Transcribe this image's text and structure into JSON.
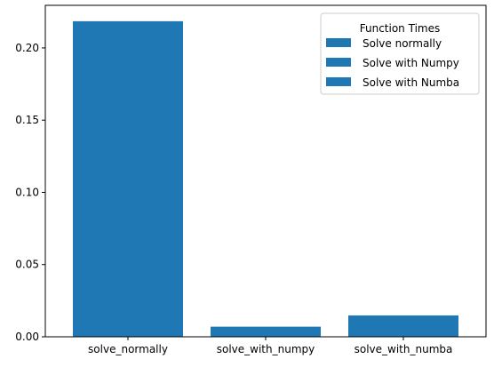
{
  "chart_data": {
    "type": "bar",
    "title": "",
    "xlabel": "",
    "ylabel": "",
    "categories": [
      "solve_normally",
      "solve_with_numpy",
      "solve_with_numba"
    ],
    "series": [
      {
        "name": "Solve normally",
        "values": [
          0.2185,
          null,
          null
        ]
      },
      {
        "name": "Solve with Numpy",
        "values": [
          null,
          0.007,
          null
        ]
      },
      {
        "name": "Solve with Numba",
        "values": [
          null,
          null,
          0.0148
        ]
      }
    ],
    "values": [
      0.2185,
      0.007,
      0.0148
    ],
    "ylim": [
      0,
      0.2295
    ],
    "yticks": [
      0.0,
      0.05,
      0.1,
      0.15,
      0.2
    ],
    "ytick_labels": [
      "0.00",
      "0.05",
      "0.10",
      "0.15",
      "0.20"
    ],
    "bar_color": "#1f77b4",
    "grid": false,
    "legend": {
      "title": "Function Times",
      "placement": "top-right",
      "entries": [
        "Solve normally",
        "Solve with Numpy",
        "Solve with Numba"
      ]
    }
  }
}
